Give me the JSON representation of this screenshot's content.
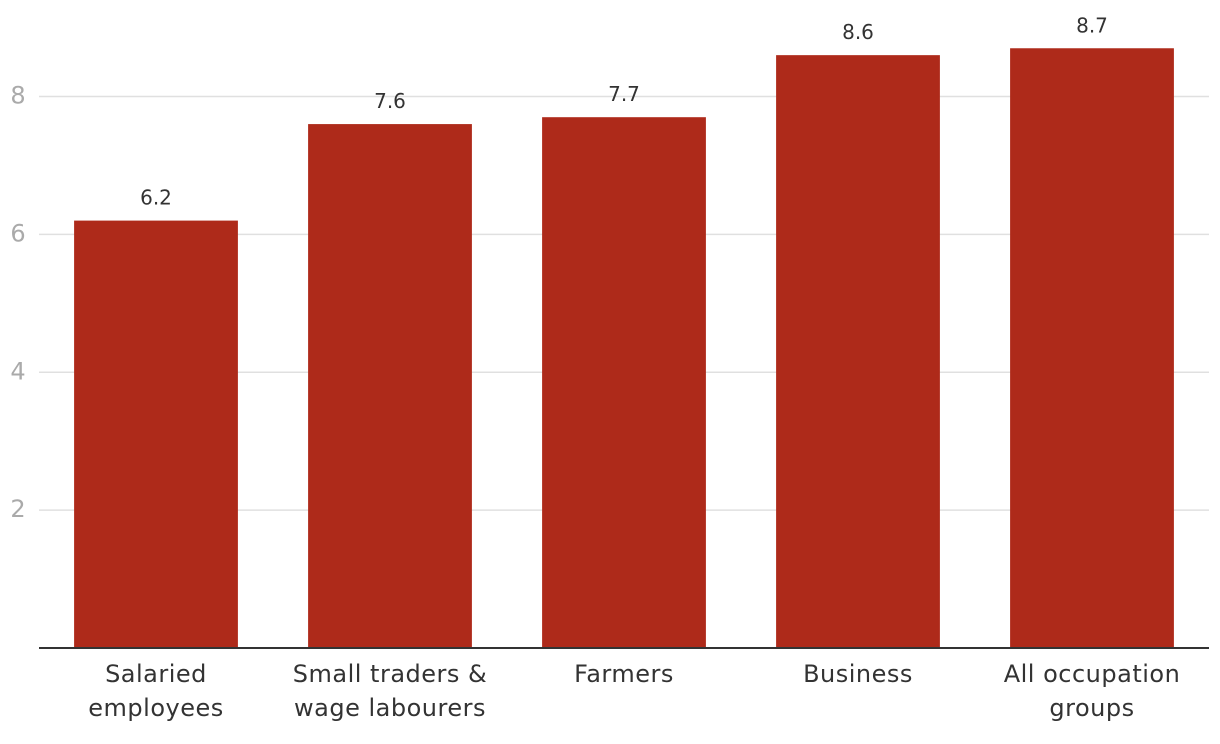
{
  "chart_data": {
    "type": "bar",
    "categories": [
      "Salaried employees",
      "Small traders & wage labourers",
      "Farmers",
      "Business",
      "All occupation groups"
    ],
    "values": [
      6.2,
      7.6,
      7.7,
      8.6,
      8.7
    ],
    "color": "#ae2a1a",
    "ylim": [
      0,
      9.4
    ],
    "yticks": [
      2,
      4,
      6,
      8
    ],
    "grid": true
  }
}
